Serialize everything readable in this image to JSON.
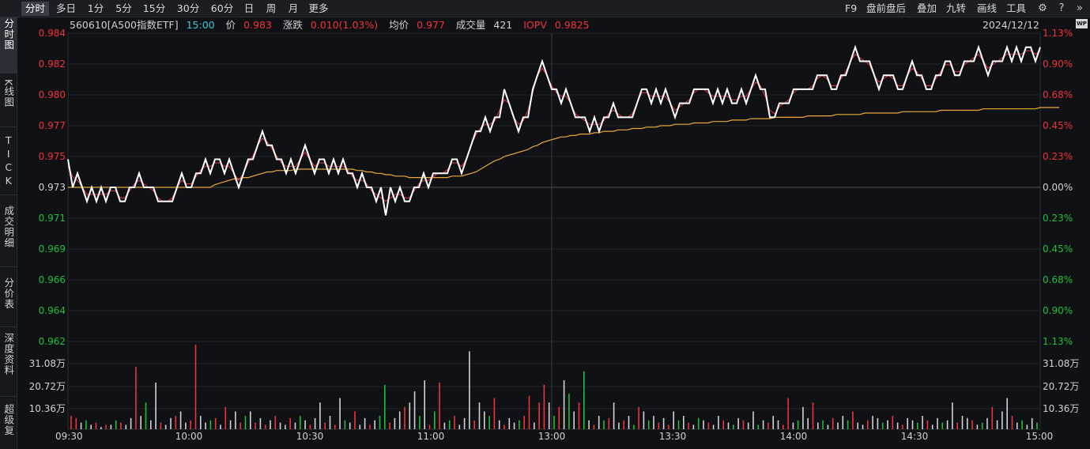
{
  "toolbar": {
    "periods": [
      "分时",
      "多日",
      "1分",
      "5分",
      "15分",
      "30分",
      "60分",
      "日",
      "周",
      "月",
      "更多"
    ],
    "active_period": "分时",
    "tools": [
      "F9",
      "盘前盘后",
      "叠加",
      "九转",
      "画线",
      "工具"
    ],
    "icons": [
      "gear-icon",
      "help-icon",
      "double-chevron-right-icon",
      "wp-icon"
    ],
    "wp_label": "WP"
  },
  "sidebar": {
    "tabs": [
      "分时图",
      "K线图",
      "TICK",
      "成交明细",
      "分价表",
      "深度资料",
      "超级复"
    ],
    "active_tab": "分时图"
  },
  "info": {
    "code_name": "560610[A500指数ETF]",
    "time": "15:00",
    "price_label": "价",
    "price": "0.983",
    "change_label": "涨跌",
    "change": "0.010(1.03%)",
    "avg_label": "均价",
    "avg": "0.977",
    "volume_label": "成交量",
    "volume": "421",
    "iopv_label": "IOPV",
    "iopv": "0.9825",
    "date": "2024/12/12"
  },
  "colors": {
    "up": "#f0333a",
    "down": "#1fbf3a",
    "neutral": "#d0d2d6",
    "price_line": "#ffffff",
    "avg_line": "#e8a93a",
    "iopv_line": "#e8364a",
    "cyan_time": "#35c9d6"
  },
  "chart_data": {
    "type": "line",
    "x_ticks": [
      "09:30",
      "10:00",
      "10:30",
      "11:00",
      "13:00",
      "13:30",
      "14:00",
      "14:30",
      "15:00"
    ],
    "price_ticks_left": [
      "0.984",
      "0.982",
      "0.980",
      "0.977",
      "0.975",
      "0.973",
      "0.971",
      "0.969",
      "0.966",
      "0.964",
      "0.962"
    ],
    "pct_ticks_right": [
      "1.13%",
      "0.90%",
      "0.68%",
      "0.45%",
      "0.23%",
      "0.00%",
      "0.23%",
      "0.45%",
      "0.68%",
      "0.90%",
      "1.13%"
    ],
    "volume_ticks": [
      "31.08万",
      "20.72万",
      "10.36万"
    ],
    "y_range": [
      0.962,
      0.984
    ],
    "prev_close": 0.973,
    "series": [
      {
        "values": [
          0.975,
          0.973,
          0.974,
          0.973,
          0.972,
          0.973,
          0.972,
          0.973,
          0.972,
          0.973,
          0.973,
          0.972,
          0.972,
          0.973,
          0.973,
          0.974,
          0.973,
          0.973,
          0.973,
          0.972,
          0.972,
          0.972,
          0.972,
          0.973,
          0.974,
          0.973,
          0.973,
          0.974,
          0.974,
          0.975,
          0.974,
          0.975,
          0.975,
          0.974,
          0.975,
          0.974,
          0.973,
          0.974,
          0.975,
          0.975,
          0.976,
          0.977,
          0.976,
          0.976,
          0.975,
          0.975,
          0.974,
          0.975,
          0.974,
          0.975,
          0.976,
          0.975,
          0.974,
          0.975,
          0.975,
          0.974,
          0.975,
          0.974,
          0.975,
          0.974,
          0.974,
          0.973,
          0.974,
          0.973,
          0.973,
          0.972,
          0.973,
          0.971,
          0.973,
          0.972,
          0.973,
          0.972,
          0.972,
          0.973,
          0.973,
          0.974,
          0.973,
          0.974,
          0.974,
          0.974,
          0.974,
          0.975,
          0.975,
          0.974,
          0.975,
          0.976,
          0.977,
          0.977,
          0.978,
          0.977,
          0.978,
          0.978,
          0.98,
          0.979,
          0.978,
          0.977,
          0.978,
          0.978,
          0.98,
          0.981,
          0.982,
          0.981,
          0.98,
          0.98,
          0.979,
          0.98,
          0.979,
          0.978,
          0.978,
          0.978,
          0.977,
          0.978,
          0.977,
          0.978,
          0.978,
          0.979,
          0.978,
          0.978,
          0.978,
          0.978,
          0.979,
          0.98,
          0.98,
          0.979,
          0.98,
          0.979,
          0.98,
          0.979,
          0.978,
          0.979,
          0.979,
          0.979,
          0.98,
          0.98,
          0.98,
          0.98,
          0.979,
          0.98,
          0.979,
          0.98,
          0.979,
          0.979,
          0.98,
          0.979,
          0.98,
          0.981,
          0.98,
          0.98,
          0.978,
          0.978,
          0.979,
          0.979,
          0.979,
          0.98,
          0.98,
          0.98,
          0.98,
          0.98,
          0.981,
          0.981,
          0.981,
          0.98,
          0.98,
          0.981,
          0.981,
          0.982,
          0.983,
          0.982,
          0.982,
          0.982,
          0.981,
          0.98,
          0.981,
          0.981,
          0.981,
          0.98,
          0.98,
          0.981,
          0.982,
          0.981,
          0.981,
          0.98,
          0.98,
          0.981,
          0.981,
          0.982,
          0.982,
          0.981,
          0.981,
          0.982,
          0.982,
          0.982,
          0.983,
          0.982,
          0.981,
          0.982,
          0.982,
          0.982,
          0.983,
          0.982,
          0.983,
          0.982,
          0.983,
          0.983,
          0.982,
          0.983
        ]
      },
      {
        "values": [
          0.973,
          0.973,
          0.973,
          0.973,
          0.973,
          0.973,
          0.973,
          0.973,
          0.973,
          0.973,
          0.973,
          0.973,
          0.973,
          0.973,
          0.973,
          0.973,
          0.973,
          0.973,
          0.973,
          0.973,
          0.973,
          0.973,
          0.973,
          0.973,
          0.973,
          0.973,
          0.973,
          0.973,
          0.973,
          0.973,
          0.973,
          0.9732,
          0.9733,
          0.9734,
          0.9735,
          0.9736,
          0.9736,
          0.9737,
          0.9737,
          0.9738,
          0.9739,
          0.974,
          0.9741,
          0.9741,
          0.9742,
          0.9742,
          0.9742,
          0.9742,
          0.9743,
          0.9743,
          0.9743,
          0.9743,
          0.9743,
          0.9743,
          0.9743,
          0.9743,
          0.9743,
          0.9743,
          0.9743,
          0.9743,
          0.9743,
          0.9742,
          0.9742,
          0.9741,
          0.9741,
          0.974,
          0.974,
          0.9739,
          0.9739,
          0.9738,
          0.9738,
          0.9738,
          0.9737,
          0.9737,
          0.9737,
          0.9737,
          0.9737,
          0.9737,
          0.9737,
          0.9737,
          0.9737,
          0.9738,
          0.9738,
          0.9738,
          0.9739,
          0.974,
          0.9741,
          0.9743,
          0.9745,
          0.9747,
          0.9749,
          0.975,
          0.9752,
          0.9753,
          0.9754,
          0.9755,
          0.9756,
          0.9757,
          0.9759,
          0.976,
          0.9762,
          0.9763,
          0.9764,
          0.9765,
          0.9766,
          0.9766,
          0.9767,
          0.9767,
          0.9768,
          0.9768,
          0.9768,
          0.9769,
          0.9769,
          0.977,
          0.977,
          0.977,
          0.9771,
          0.9771,
          0.9771,
          0.9772,
          0.9772,
          0.9772,
          0.9773,
          0.9773,
          0.9773,
          0.9774,
          0.9774,
          0.9774,
          0.9775,
          0.9775,
          0.9775,
          0.9775,
          0.9776,
          0.9776,
          0.9776,
          0.9776,
          0.9777,
          0.9777,
          0.9777,
          0.9777,
          0.9778,
          0.9778,
          0.9778,
          0.9778,
          0.9779,
          0.9779,
          0.9779,
          0.9779,
          0.9779,
          0.978,
          0.978,
          0.978,
          0.978,
          0.978,
          0.978,
          0.978,
          0.9781,
          0.9781,
          0.9781,
          0.9781,
          0.9781,
          0.9781,
          0.9782,
          0.9782,
          0.9782,
          0.9782,
          0.9782,
          0.9782,
          0.9783,
          0.9783,
          0.9783,
          0.9783,
          0.9783,
          0.9783,
          0.9783,
          0.9783,
          0.9784,
          0.9784,
          0.9784,
          0.9784,
          0.9784,
          0.9784,
          0.9784,
          0.9784,
          0.9785,
          0.9785,
          0.9785,
          0.9785,
          0.9785,
          0.9785,
          0.9785,
          0.9785,
          0.9785,
          0.9786,
          0.9786,
          0.9786,
          0.9786,
          0.9786,
          0.9786,
          0.9786,
          0.9786,
          0.9786,
          0.9786,
          0.9786,
          0.9786,
          0.9787,
          0.9787,
          0.9787,
          0.9787,
          0.9787
        ]
      }
    ],
    "volume": [
      [
        6,
        "r"
      ],
      [
        5,
        "r"
      ],
      [
        3,
        "w"
      ],
      [
        4,
        "g"
      ],
      [
        2,
        "w"
      ],
      [
        3,
        "r"
      ],
      [
        1,
        "w"
      ],
      [
        2,
        "r"
      ],
      [
        2,
        "w"
      ],
      [
        4,
        "g"
      ],
      [
        3,
        "r"
      ],
      [
        2,
        "w"
      ],
      [
        5,
        "w"
      ],
      [
        28,
        "r"
      ],
      [
        6,
        "w"
      ],
      [
        12,
        "g"
      ],
      [
        4,
        "w"
      ],
      [
        21,
        "w"
      ],
      [
        3,
        "r"
      ],
      [
        2,
        "w"
      ],
      [
        5,
        "w"
      ],
      [
        6,
        "r"
      ],
      [
        8,
        "w"
      ],
      [
        3,
        "w"
      ],
      [
        4,
        "r"
      ],
      [
        38,
        "r"
      ],
      [
        6,
        "w"
      ],
      [
        3,
        "w"
      ],
      [
        4,
        "g"
      ],
      [
        5,
        "r"
      ],
      [
        2,
        "w"
      ],
      [
        10,
        "r"
      ],
      [
        4,
        "w"
      ],
      [
        8,
        "w"
      ],
      [
        3,
        "r"
      ],
      [
        6,
        "g"
      ],
      [
        8,
        "w"
      ],
      [
        3,
        "r"
      ],
      [
        5,
        "w"
      ],
      [
        2,
        "r"
      ],
      [
        4,
        "w"
      ],
      [
        6,
        "r"
      ],
      [
        3,
        "w"
      ],
      [
        2,
        "w"
      ],
      [
        5,
        "r"
      ],
      [
        3,
        "w"
      ],
      [
        6,
        "g"
      ],
      [
        4,
        "w"
      ],
      [
        2,
        "r"
      ],
      [
        5,
        "w"
      ],
      [
        12,
        "w"
      ],
      [
        3,
        "r"
      ],
      [
        6,
        "w"
      ],
      [
        2,
        "r"
      ],
      [
        14,
        "w"
      ],
      [
        4,
        "g"
      ],
      [
        3,
        "w"
      ],
      [
        8,
        "r"
      ],
      [
        2,
        "w"
      ],
      [
        5,
        "w"
      ],
      [
        2,
        "r"
      ],
      [
        4,
        "w"
      ],
      [
        6,
        "g"
      ],
      [
        20,
        "g"
      ],
      [
        3,
        "r"
      ],
      [
        5,
        "w"
      ],
      [
        8,
        "w"
      ],
      [
        10,
        "r"
      ],
      [
        12,
        "w"
      ],
      [
        17,
        "w"
      ],
      [
        6,
        "g"
      ],
      [
        22,
        "w"
      ],
      [
        2,
        "r"
      ],
      [
        8,
        "g"
      ],
      [
        21,
        "r"
      ],
      [
        3,
        "w"
      ],
      [
        4,
        "g"
      ],
      [
        6,
        "r"
      ],
      [
        2,
        "w"
      ],
      [
        5,
        "w"
      ],
      [
        35,
        "w"
      ],
      [
        4,
        "r"
      ],
      [
        12,
        "w"
      ],
      [
        8,
        "w"
      ],
      [
        6,
        "g"
      ],
      [
        14,
        "r"
      ],
      [
        4,
        "w"
      ],
      [
        2,
        "r"
      ],
      [
        5,
        "w"
      ],
      [
        3,
        "w"
      ],
      [
        4,
        "g"
      ],
      [
        6,
        "r"
      ],
      [
        15,
        "r"
      ],
      [
        3,
        "w"
      ],
      [
        12,
        "r"
      ],
      [
        20,
        "r"
      ],
      [
        12,
        "w"
      ],
      [
        6,
        "g"
      ],
      [
        10,
        "r"
      ],
      [
        22,
        "w"
      ],
      [
        16,
        "g"
      ],
      [
        8,
        "w"
      ],
      [
        12,
        "r"
      ],
      [
        26,
        "g"
      ],
      [
        4,
        "w"
      ],
      [
        2,
        "r"
      ],
      [
        6,
        "w"
      ],
      [
        4,
        "g"
      ],
      [
        5,
        "r"
      ],
      [
        12,
        "w"
      ],
      [
        3,
        "w"
      ],
      [
        4,
        "r"
      ],
      [
        6,
        "w"
      ],
      [
        2,
        "g"
      ],
      [
        10,
        "r"
      ],
      [
        8,
        "w"
      ],
      [
        4,
        "g"
      ],
      [
        6,
        "w"
      ],
      [
        3,
        "r"
      ],
      [
        5,
        "w"
      ],
      [
        2,
        "r"
      ],
      [
        8,
        "w"
      ],
      [
        4,
        "g"
      ],
      [
        6,
        "w"
      ],
      [
        3,
        "r"
      ],
      [
        2,
        "w"
      ],
      [
        5,
        "g"
      ],
      [
        4,
        "w"
      ],
      [
        3,
        "r"
      ],
      [
        2,
        "w"
      ],
      [
        6,
        "w"
      ],
      [
        4,
        "r"
      ],
      [
        3,
        "w"
      ],
      [
        2,
        "g"
      ],
      [
        5,
        "w"
      ],
      [
        4,
        "r"
      ],
      [
        3,
        "w"
      ],
      [
        8,
        "w"
      ],
      [
        2,
        "g"
      ],
      [
        4,
        "w"
      ],
      [
        3,
        "r"
      ],
      [
        6,
        "w"
      ],
      [
        4,
        "w"
      ],
      [
        2,
        "r"
      ],
      [
        14,
        "r"
      ],
      [
        3,
        "w"
      ],
      [
        4,
        "g"
      ],
      [
        10,
        "w"
      ],
      [
        5,
        "w"
      ],
      [
        12,
        "r"
      ],
      [
        3,
        "w"
      ],
      [
        4,
        "g"
      ],
      [
        2,
        "w"
      ],
      [
        5,
        "r"
      ],
      [
        3,
        "w"
      ],
      [
        6,
        "w"
      ],
      [
        4,
        "g"
      ],
      [
        8,
        "r"
      ],
      [
        3,
        "w"
      ],
      [
        2,
        "w"
      ],
      [
        4,
        "r"
      ],
      [
        6,
        "w"
      ],
      [
        5,
        "w"
      ],
      [
        3,
        "g"
      ],
      [
        4,
        "w"
      ],
      [
        6,
        "r"
      ],
      [
        3,
        "w"
      ],
      [
        2,
        "r"
      ],
      [
        5,
        "w"
      ],
      [
        4,
        "w"
      ],
      [
        3,
        "g"
      ],
      [
        6,
        "w"
      ],
      [
        4,
        "r"
      ],
      [
        2,
        "w"
      ],
      [
        5,
        "w"
      ],
      [
        3,
        "g"
      ],
      [
        4,
        "w"
      ],
      [
        12,
        "w"
      ],
      [
        3,
        "r"
      ],
      [
        6,
        "w"
      ],
      [
        5,
        "w"
      ],
      [
        4,
        "r"
      ],
      [
        2,
        "w"
      ],
      [
        3,
        "g"
      ],
      [
        5,
        "w"
      ],
      [
        10,
        "r"
      ],
      [
        4,
        "w"
      ],
      [
        8,
        "w"
      ],
      [
        14,
        "w"
      ],
      [
        6,
        "r"
      ],
      [
        3,
        "w"
      ],
      [
        4,
        "g"
      ],
      [
        2,
        "w"
      ],
      [
        5,
        "w"
      ],
      [
        3,
        "g"
      ]
    ]
  }
}
